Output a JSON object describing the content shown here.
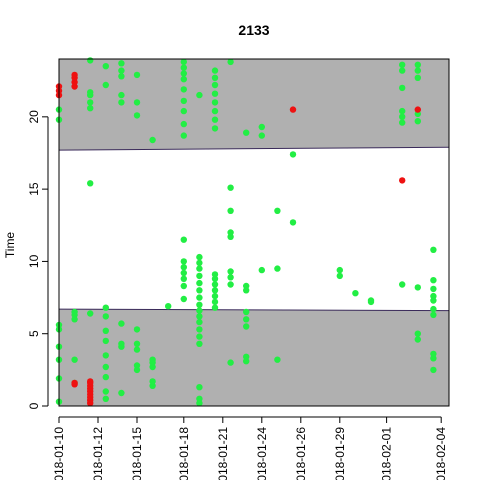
{
  "chart_data": {
    "type": "scatter",
    "title": "2133",
    "ylabel": "Time",
    "xlabel": "",
    "ylim": [
      0,
      24
    ],
    "xlim": [
      "2018-01-10",
      "2018-02-04"
    ],
    "y_ticks": [
      0,
      5,
      10,
      15,
      20
    ],
    "x_tick_labels": [
      "2018-01-10",
      "2018-01-12",
      "2018-01-15",
      "2018-01-18",
      "2018-01-21",
      "2018-01-24",
      "2018-01-26",
      "2018-01-29",
      "2018-02-01",
      "2018-02-04"
    ],
    "x_tick_dates": [
      "2018-01-10",
      "2018-01-12.5",
      "2018-01-15",
      "2018-01-18",
      "2018-01-20.5",
      "2018-01-23",
      "2018-01-25.5",
      "2018-01-28",
      "2018-01-31",
      "2018-02-03.5"
    ],
    "shaded_bands": [
      {
        "from": 0,
        "to_start": 6.7,
        "to_end": 6.6,
        "color": "#b0b0b0"
      },
      {
        "from_start": 17.7,
        "from_end": 17.9,
        "to": 24,
        "color": "#b0b0b0"
      }
    ],
    "colors": {
      "green": "#22ee44",
      "red": "#ee1111",
      "band": "#b0b0b0",
      "band_line": "#3a2a5a"
    },
    "series": [
      {
        "color": "green",
        "points": [
          [
            "2018-01-10",
            1.9
          ],
          [
            "2018-01-10",
            3.2
          ],
          [
            "2018-01-10",
            4.1
          ],
          [
            "2018-01-10",
            5.3
          ],
          [
            "2018-01-10",
            5.6
          ],
          [
            "2018-01-10",
            19.8
          ],
          [
            "2018-01-10",
            20.5
          ],
          [
            "2018-01-10",
            0.3
          ],
          [
            "2018-01-11",
            1.6
          ],
          [
            "2018-01-11",
            6.0
          ],
          [
            "2018-01-11",
            6.3
          ],
          [
            "2018-01-11",
            6.5
          ],
          [
            "2018-01-11",
            3.2
          ],
          [
            "2018-01-12",
            15.4
          ],
          [
            "2018-01-12",
            20.6
          ],
          [
            "2018-01-12",
            21.0
          ],
          [
            "2018-01-12",
            21.5
          ],
          [
            "2018-01-12",
            21.7
          ],
          [
            "2018-01-12",
            23.9
          ],
          [
            "2018-01-12",
            6.4
          ],
          [
            "2018-01-13",
            0.5
          ],
          [
            "2018-01-13",
            1.0
          ],
          [
            "2018-01-13",
            2.0
          ],
          [
            "2018-01-13",
            2.7
          ],
          [
            "2018-01-13",
            3.5
          ],
          [
            "2018-01-13",
            4.5
          ],
          [
            "2018-01-13",
            5.2
          ],
          [
            "2018-01-13",
            6.2
          ],
          [
            "2018-01-13",
            6.8
          ],
          [
            "2018-01-13",
            22.2
          ],
          [
            "2018-01-13",
            23.5
          ],
          [
            "2018-01-14",
            0.9
          ],
          [
            "2018-01-14",
            4.1
          ],
          [
            "2018-01-14",
            4.3
          ],
          [
            "2018-01-14",
            5.7
          ],
          [
            "2018-01-14",
            21.0
          ],
          [
            "2018-01-14",
            21.5
          ],
          [
            "2018-01-14",
            22.8
          ],
          [
            "2018-01-14",
            23.2
          ],
          [
            "2018-01-14",
            23.7
          ],
          [
            "2018-01-15",
            2.5
          ],
          [
            "2018-01-15",
            2.8
          ],
          [
            "2018-01-15",
            3.9
          ],
          [
            "2018-01-15",
            4.3
          ],
          [
            "2018-01-15",
            5.3
          ],
          [
            "2018-01-15",
            20.1
          ],
          [
            "2018-01-15",
            21.0
          ],
          [
            "2018-01-15",
            22.9
          ],
          [
            "2018-01-16",
            1.4
          ],
          [
            "2018-01-16",
            1.7
          ],
          [
            "2018-01-16",
            2.7
          ],
          [
            "2018-01-16",
            3.0
          ],
          [
            "2018-01-16",
            3.2
          ],
          [
            "2018-01-16",
            18.4
          ],
          [
            "2018-01-17",
            6.9
          ],
          [
            "2018-01-18",
            7.4
          ],
          [
            "2018-01-18",
            8.3
          ],
          [
            "2018-01-18",
            8.8
          ],
          [
            "2018-01-18",
            9.2
          ],
          [
            "2018-01-18",
            9.6
          ],
          [
            "2018-01-18",
            10.0
          ],
          [
            "2018-01-18",
            11.5
          ],
          [
            "2018-01-18",
            18.7
          ],
          [
            "2018-01-18",
            19.5
          ],
          [
            "2018-01-18",
            20.4
          ],
          [
            "2018-01-18",
            21.1
          ],
          [
            "2018-01-18",
            21.9
          ],
          [
            "2018-01-18",
            22.6
          ],
          [
            "2018-01-18",
            23.0
          ],
          [
            "2018-01-18",
            23.4
          ],
          [
            "2018-01-18",
            23.8
          ],
          [
            "2018-01-19",
            0.2
          ],
          [
            "2018-01-19",
            0.5
          ],
          [
            "2018-01-19",
            1.3
          ],
          [
            "2018-01-19",
            4.3
          ],
          [
            "2018-01-19",
            4.8
          ],
          [
            "2018-01-19",
            5.3
          ],
          [
            "2018-01-19",
            5.8
          ],
          [
            "2018-01-19",
            6.2
          ],
          [
            "2018-01-19",
            6.6
          ],
          [
            "2018-01-19",
            7.0
          ],
          [
            "2018-01-19",
            7.5
          ],
          [
            "2018-01-19",
            8.0
          ],
          [
            "2018-01-19",
            8.5
          ],
          [
            "2018-01-19",
            9.0
          ],
          [
            "2018-01-19",
            9.5
          ],
          [
            "2018-01-19",
            9.9
          ],
          [
            "2018-01-19",
            10.3
          ],
          [
            "2018-01-19",
            21.5
          ],
          [
            "2018-01-20",
            6.8
          ],
          [
            "2018-01-20",
            7.2
          ],
          [
            "2018-01-20",
            7.6
          ],
          [
            "2018-01-20",
            8.0
          ],
          [
            "2018-01-20",
            8.4
          ],
          [
            "2018-01-20",
            8.8
          ],
          [
            "2018-01-20",
            9.1
          ],
          [
            "2018-01-20",
            19.2
          ],
          [
            "2018-01-20",
            19.8
          ],
          [
            "2018-01-20",
            20.4
          ],
          [
            "2018-01-20",
            21.0
          ],
          [
            "2018-01-20",
            21.6
          ],
          [
            "2018-01-20",
            22.2
          ],
          [
            "2018-01-20",
            22.7
          ],
          [
            "2018-01-20",
            23.2
          ],
          [
            "2018-01-21",
            3.0
          ],
          [
            "2018-01-21",
            8.4
          ],
          [
            "2018-01-21",
            8.9
          ],
          [
            "2018-01-21",
            9.3
          ],
          [
            "2018-01-21",
            11.7
          ],
          [
            "2018-01-21",
            12.0
          ],
          [
            "2018-01-21",
            13.5
          ],
          [
            "2018-01-21",
            15.1
          ],
          [
            "2018-01-21",
            23.8
          ],
          [
            "2018-01-22",
            3.1
          ],
          [
            "2018-01-22",
            3.4
          ],
          [
            "2018-01-22",
            5.5
          ],
          [
            "2018-01-22",
            6.0
          ],
          [
            "2018-01-22",
            6.5
          ],
          [
            "2018-01-22",
            8.0
          ],
          [
            "2018-01-22",
            8.3
          ],
          [
            "2018-01-22",
            18.9
          ],
          [
            "2018-01-23",
            9.4
          ],
          [
            "2018-01-23",
            18.7
          ],
          [
            "2018-01-23",
            19.3
          ],
          [
            "2018-01-24",
            3.2
          ],
          [
            "2018-01-24",
            9.5
          ],
          [
            "2018-01-24",
            13.5
          ],
          [
            "2018-01-25",
            12.7
          ],
          [
            "2018-01-25",
            17.4
          ],
          [
            "2018-01-28",
            9.0
          ],
          [
            "2018-01-28",
            9.4
          ],
          [
            "2018-01-29",
            7.8
          ],
          [
            "2018-01-30",
            7.2
          ],
          [
            "2018-01-30",
            7.3
          ],
          [
            "2018-02-01",
            8.4
          ],
          [
            "2018-02-01",
            19.6
          ],
          [
            "2018-02-01",
            20.0
          ],
          [
            "2018-02-01",
            20.4
          ],
          [
            "2018-02-01",
            22.0
          ],
          [
            "2018-02-01",
            23.2
          ],
          [
            "2018-02-01",
            23.6
          ],
          [
            "2018-02-02",
            4.6
          ],
          [
            "2018-02-02",
            5.0
          ],
          [
            "2018-02-02",
            8.2
          ],
          [
            "2018-02-02",
            19.7
          ],
          [
            "2018-02-02",
            20.2
          ],
          [
            "2018-02-02",
            22.7
          ],
          [
            "2018-02-02",
            23.2
          ],
          [
            "2018-02-02",
            23.6
          ],
          [
            "2018-02-03",
            2.5
          ],
          [
            "2018-02-03",
            3.3
          ],
          [
            "2018-02-03",
            3.6
          ],
          [
            "2018-02-03",
            6.3
          ],
          [
            "2018-02-03",
            6.7
          ],
          [
            "2018-02-03",
            7.3
          ],
          [
            "2018-02-03",
            7.6
          ],
          [
            "2018-02-03",
            8.1
          ],
          [
            "2018-02-03",
            8.7
          ],
          [
            "2018-02-03",
            10.8
          ]
        ]
      },
      {
        "color": "red",
        "points": [
          [
            "2018-01-10",
            21.5
          ],
          [
            "2018-01-10",
            21.8
          ],
          [
            "2018-01-10",
            22.1
          ],
          [
            "2018-01-11",
            1.5
          ],
          [
            "2018-01-11",
            1.6
          ],
          [
            "2018-01-11",
            22.1
          ],
          [
            "2018-01-11",
            22.4
          ],
          [
            "2018-01-11",
            22.7
          ],
          [
            "2018-01-11",
            22.9
          ],
          [
            "2018-01-12",
            0.2
          ],
          [
            "2018-01-12",
            0.4
          ],
          [
            "2018-01-12",
            0.6
          ],
          [
            "2018-01-12",
            0.8
          ],
          [
            "2018-01-12",
            1.0
          ],
          [
            "2018-01-12",
            1.2
          ],
          [
            "2018-01-12",
            1.4
          ],
          [
            "2018-01-12",
            1.6
          ],
          [
            "2018-01-12",
            1.7
          ],
          [
            "2018-01-25",
            20.5
          ],
          [
            "2018-02-01",
            15.6
          ],
          [
            "2018-02-02",
            20.5
          ]
        ]
      }
    ]
  }
}
